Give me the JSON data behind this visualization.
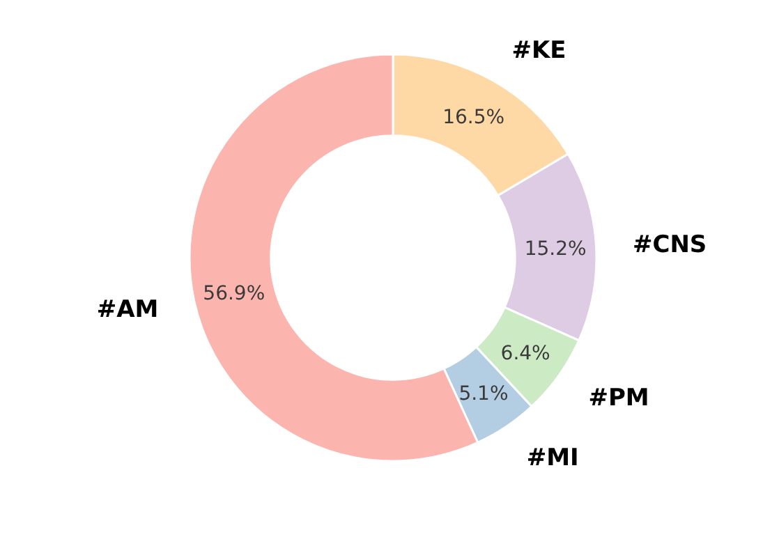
{
  "chart_data": {
    "type": "donut",
    "categories": [
      "#KE",
      "#CNS",
      "#PM",
      "#MI",
      "#AM"
    ],
    "values": [
      16.5,
      15.2,
      6.4,
      5.1,
      56.9
    ],
    "colors": [
      "#fed9a6",
      "#decbe4",
      "#ccebc5",
      "#b3cde3",
      "#fbb4ae"
    ],
    "value_labels": [
      "16.5%",
      "15.2%",
      "6.4%",
      "5.1%",
      "56.9%"
    ]
  }
}
